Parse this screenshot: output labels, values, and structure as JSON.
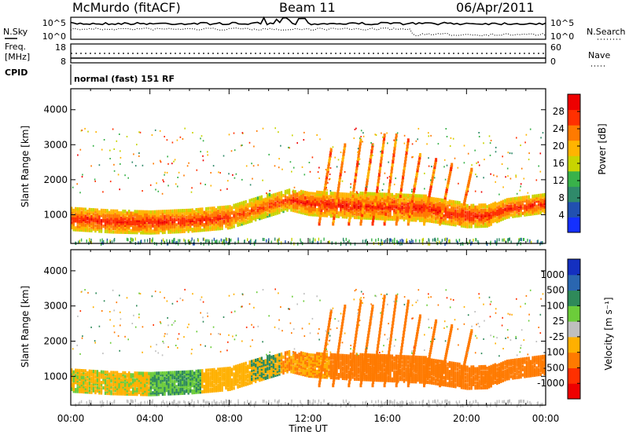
{
  "header": {
    "station": "McMurdo (fitACF)",
    "beam": "Beam 11",
    "date": "06/Apr/2011",
    "cpid_label": "CPID",
    "cpid_value": "normal (fast) 151 RF"
  },
  "noise_panel": {
    "left_label": "N.Sky",
    "right_label": "N.Search",
    "y_ticks_left": [
      "10^5",
      "10^0"
    ],
    "y_ticks_right": [
      "10^5",
      "10^0"
    ]
  },
  "freq_panel": {
    "left_label_1": "Freq.",
    "left_label_2": "[MHz]",
    "right_label": "Nave",
    "y_ticks_left": [
      "18",
      "8"
    ],
    "y_ticks_right": [
      "60",
      "0"
    ]
  },
  "colors": {
    "power_scale": [
      "#1430ff",
      "#2150b0",
      "#2f8a6a",
      "#39b24a",
      "#c8d400",
      "#ffb400",
      "#ff7a00",
      "#ff3000",
      "#ee0000"
    ],
    "velocity_scale": [
      "#ee0000",
      "#ff3000",
      "#ff7a00",
      "#ffb000",
      "#bfbfbf",
      "#6ccc3a",
      "#2f8a5a",
      "#2a66b0",
      "#1430c0"
    ]
  },
  "chart_data": [
    {
      "type": "heatmap",
      "panel": "power",
      "ylabel": "Slant Range [km]",
      "xlim": [
        "00:00",
        "00:00"
      ],
      "ylim": [
        180,
        4600
      ],
      "x_ticks": [
        "00:00",
        "04:00",
        "08:00",
        "12:00",
        "16:00",
        "20:00",
        "00:00"
      ],
      "y_ticks": [
        "1000",
        "2000",
        "3000",
        "4000"
      ],
      "colorbar_label": "Power [dB]",
      "colorbar_ticks": [
        "4",
        "8",
        "12",
        "16",
        "20",
        "24",
        "28"
      ],
      "colorbar_range": [
        0,
        32
      ]
    },
    {
      "type": "heatmap",
      "panel": "velocity",
      "ylabel": "Slant Range [km]",
      "xlabel": "Time UT",
      "xlim": [
        "00:00",
        "00:00"
      ],
      "ylim": [
        180,
        4600
      ],
      "x_ticks": [
        "00:00",
        "04:00",
        "08:00",
        "12:00",
        "16:00",
        "20:00",
        "00:00"
      ],
      "y_ticks": [
        "1000",
        "2000",
        "3000",
        "4000"
      ],
      "colorbar_label": "Velocity [m s⁻¹]",
      "colorbar_ticks": [
        "1000",
        "500",
        "100",
        "25",
        "-25",
        "-100",
        "-500",
        "-1000"
      ]
    }
  ]
}
